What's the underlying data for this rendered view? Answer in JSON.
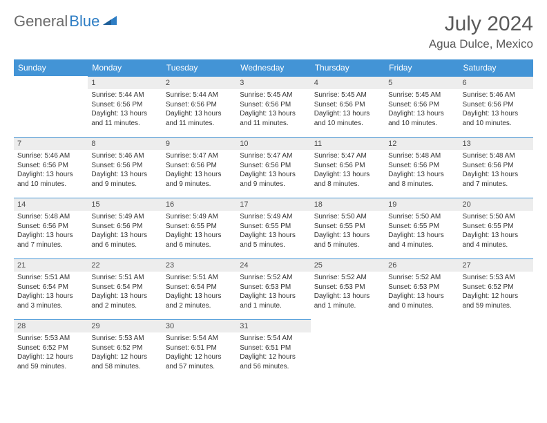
{
  "logo": {
    "text1": "General",
    "text2": "Blue"
  },
  "title": "July 2024",
  "location": "Agua Dulce, Mexico",
  "colors": {
    "header_bg": "#4394d6",
    "header_text": "#ffffff",
    "daynum_bg": "#ededed",
    "border": "#4394d6",
    "logo_gray": "#6b6b6b",
    "logo_blue": "#2d7dc4"
  },
  "weekdays": [
    "Sunday",
    "Monday",
    "Tuesday",
    "Wednesday",
    "Thursday",
    "Friday",
    "Saturday"
  ],
  "startOffset": 1,
  "days": [
    {
      "n": 1,
      "sr": "5:44 AM",
      "ss": "6:56 PM",
      "dl": "13 hours and 11 minutes."
    },
    {
      "n": 2,
      "sr": "5:44 AM",
      "ss": "6:56 PM",
      "dl": "13 hours and 11 minutes."
    },
    {
      "n": 3,
      "sr": "5:45 AM",
      "ss": "6:56 PM",
      "dl": "13 hours and 11 minutes."
    },
    {
      "n": 4,
      "sr": "5:45 AM",
      "ss": "6:56 PM",
      "dl": "13 hours and 10 minutes."
    },
    {
      "n": 5,
      "sr": "5:45 AM",
      "ss": "6:56 PM",
      "dl": "13 hours and 10 minutes."
    },
    {
      "n": 6,
      "sr": "5:46 AM",
      "ss": "6:56 PM",
      "dl": "13 hours and 10 minutes."
    },
    {
      "n": 7,
      "sr": "5:46 AM",
      "ss": "6:56 PM",
      "dl": "13 hours and 10 minutes."
    },
    {
      "n": 8,
      "sr": "5:46 AM",
      "ss": "6:56 PM",
      "dl": "13 hours and 9 minutes."
    },
    {
      "n": 9,
      "sr": "5:47 AM",
      "ss": "6:56 PM",
      "dl": "13 hours and 9 minutes."
    },
    {
      "n": 10,
      "sr": "5:47 AM",
      "ss": "6:56 PM",
      "dl": "13 hours and 9 minutes."
    },
    {
      "n": 11,
      "sr": "5:47 AM",
      "ss": "6:56 PM",
      "dl": "13 hours and 8 minutes."
    },
    {
      "n": 12,
      "sr": "5:48 AM",
      "ss": "6:56 PM",
      "dl": "13 hours and 8 minutes."
    },
    {
      "n": 13,
      "sr": "5:48 AM",
      "ss": "6:56 PM",
      "dl": "13 hours and 7 minutes."
    },
    {
      "n": 14,
      "sr": "5:48 AM",
      "ss": "6:56 PM",
      "dl": "13 hours and 7 minutes."
    },
    {
      "n": 15,
      "sr": "5:49 AM",
      "ss": "6:56 PM",
      "dl": "13 hours and 6 minutes."
    },
    {
      "n": 16,
      "sr": "5:49 AM",
      "ss": "6:55 PM",
      "dl": "13 hours and 6 minutes."
    },
    {
      "n": 17,
      "sr": "5:49 AM",
      "ss": "6:55 PM",
      "dl": "13 hours and 5 minutes."
    },
    {
      "n": 18,
      "sr": "5:50 AM",
      "ss": "6:55 PM",
      "dl": "13 hours and 5 minutes."
    },
    {
      "n": 19,
      "sr": "5:50 AM",
      "ss": "6:55 PM",
      "dl": "13 hours and 4 minutes."
    },
    {
      "n": 20,
      "sr": "5:50 AM",
      "ss": "6:55 PM",
      "dl": "13 hours and 4 minutes."
    },
    {
      "n": 21,
      "sr": "5:51 AM",
      "ss": "6:54 PM",
      "dl": "13 hours and 3 minutes."
    },
    {
      "n": 22,
      "sr": "5:51 AM",
      "ss": "6:54 PM",
      "dl": "13 hours and 2 minutes."
    },
    {
      "n": 23,
      "sr": "5:51 AM",
      "ss": "6:54 PM",
      "dl": "13 hours and 2 minutes."
    },
    {
      "n": 24,
      "sr": "5:52 AM",
      "ss": "6:53 PM",
      "dl": "13 hours and 1 minute."
    },
    {
      "n": 25,
      "sr": "5:52 AM",
      "ss": "6:53 PM",
      "dl": "13 hours and 1 minute."
    },
    {
      "n": 26,
      "sr": "5:52 AM",
      "ss": "6:53 PM",
      "dl": "13 hours and 0 minutes."
    },
    {
      "n": 27,
      "sr": "5:53 AM",
      "ss": "6:52 PM",
      "dl": "12 hours and 59 minutes."
    },
    {
      "n": 28,
      "sr": "5:53 AM",
      "ss": "6:52 PM",
      "dl": "12 hours and 59 minutes."
    },
    {
      "n": 29,
      "sr": "5:53 AM",
      "ss": "6:52 PM",
      "dl": "12 hours and 58 minutes."
    },
    {
      "n": 30,
      "sr": "5:54 AM",
      "ss": "6:51 PM",
      "dl": "12 hours and 57 minutes."
    },
    {
      "n": 31,
      "sr": "5:54 AM",
      "ss": "6:51 PM",
      "dl": "12 hours and 56 minutes."
    }
  ],
  "labels": {
    "sunrise": "Sunrise: ",
    "sunset": "Sunset: ",
    "daylight": "Daylight: "
  }
}
